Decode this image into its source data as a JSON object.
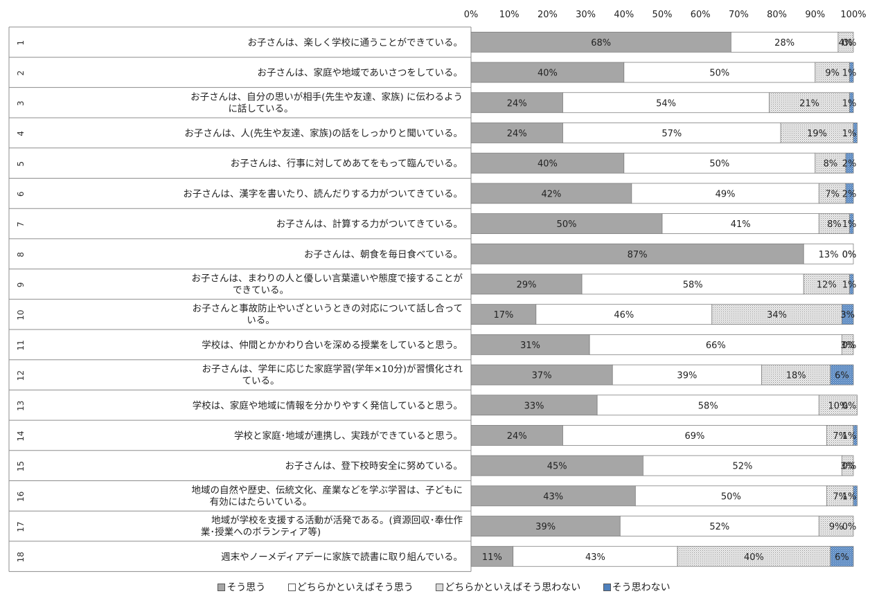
{
  "chart_data": {
    "type": "bar",
    "orientation": "horizontal",
    "stacked": "percent",
    "x_ticks": [
      "0%",
      "10%",
      "20%",
      "30%",
      "40%",
      "50%",
      "60%",
      "70%",
      "80%",
      "90%",
      "100%"
    ],
    "xlim": [
      0,
      100
    ],
    "legend_position": "bottom",
    "categories": [
      {
        "num": "1",
        "lines": [
          "お子さんは、楽しく学校に通うことができている。"
        ]
      },
      {
        "num": "2",
        "lines": [
          "お子さんは、家庭や地域であいさつをしている。"
        ]
      },
      {
        "num": "3",
        "lines": [
          "お子さんは、自分の思いが相手(先生や友達、家族) に伝わるよう",
          "に話している。"
        ]
      },
      {
        "num": "4",
        "lines": [
          "お子さんは、人(先生や友達、家族)の話をしっかりと聞いている。"
        ]
      },
      {
        "num": "5",
        "lines": [
          "お子さんは、行事に対してめあてをもって臨んでいる。"
        ]
      },
      {
        "num": "6",
        "lines": [
          "お子さんは、漢字を書いたり、読んだりする力がついてきている。"
        ]
      },
      {
        "num": "7",
        "lines": [
          "お子さんは、計算する力がついてきている。"
        ]
      },
      {
        "num": "8",
        "lines": [
          "お子さんは、朝食を毎日食べている。"
        ]
      },
      {
        "num": "9",
        "lines": [
          "お子さんは、まわりの人と優しい言葉遣いや態度で接することが",
          "できている。"
        ]
      },
      {
        "num": "10",
        "lines": [
          "お子さんと事故防止やいざというときの対応について話し合って",
          "いる。"
        ]
      },
      {
        "num": "11",
        "lines": [
          "学校は、仲間とかかわり合いを深める授業をしていると思う。"
        ]
      },
      {
        "num": "12",
        "lines": [
          "お子さんは、学年に応じた家庭学習(学年×10分)が習慣化され",
          "ている。"
        ]
      },
      {
        "num": "13",
        "lines": [
          "学校は、家庭や地域に情報を分かりやすく発信していると思う。"
        ]
      },
      {
        "num": "14",
        "lines": [
          "学校と家庭･地域が連携し、実践ができていると思う。"
        ]
      },
      {
        "num": "15",
        "lines": [
          "お子さんは、登下校時安全に努めている。"
        ]
      },
      {
        "num": "16",
        "lines": [
          "地域の自然や歴史、伝統文化、産業などを学ぶ学習は、子どもに",
          "有効にはたらいている。"
        ]
      },
      {
        "num": "17",
        "lines": [
          "地域が学校を支援する活動が活発である。(資源回収･奉仕作",
          "業･授業へのボランティア等)"
        ]
      },
      {
        "num": "18",
        "lines": [
          "週末やノーメディアデーに家族で読書に取り組んでいる。"
        ]
      }
    ],
    "series": [
      {
        "name": "そう思う",
        "color": "#a6a6a6",
        "pattern": "solid",
        "values": [
          68,
          40,
          24,
          24,
          40,
          42,
          50,
          87,
          29,
          17,
          31,
          37,
          33,
          24,
          45,
          43,
          39,
          11
        ]
      },
      {
        "name": "どちらかといえばそう思う",
        "color": "#ffffff",
        "pattern": "solid",
        "values": [
          28,
          50,
          54,
          57,
          50,
          49,
          41,
          13,
          58,
          46,
          66,
          39,
          58,
          69,
          52,
          50,
          52,
          43
        ]
      },
      {
        "name": "どちらかといえばそう思わない",
        "color": "#d9d9d9",
        "pattern": "dotted",
        "values": [
          4,
          9,
          21,
          19,
          8,
          7,
          8,
          0,
          12,
          34,
          3,
          18,
          10,
          7,
          3,
          7,
          9,
          40
        ]
      },
      {
        "name": "そう思わない",
        "color": "#4f81bd",
        "pattern": "dotted",
        "values": [
          0,
          1,
          1,
          1,
          2,
          2,
          1,
          0,
          1,
          3,
          0,
          6,
          0,
          1,
          0,
          1,
          0,
          6
        ]
      }
    ]
  },
  "legend": {
    "items": [
      {
        "label": "そう思う"
      },
      {
        "label": "どちらかといえばそう思う"
      },
      {
        "label": "どちらかといえばそう思わない"
      },
      {
        "label": "そう思わない"
      }
    ]
  }
}
